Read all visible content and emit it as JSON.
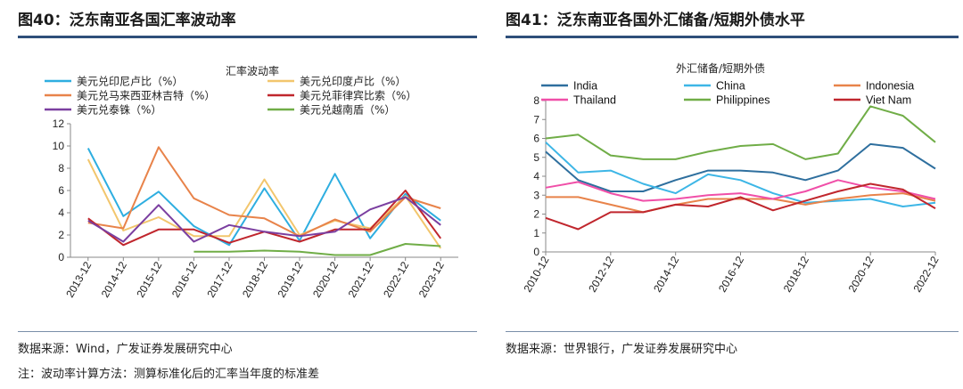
{
  "left": {
    "figure_title": "图40：泛东南亚各国汇率波动率",
    "source": "数据来源：Wind，广发证券发展研究中心",
    "note": "注：波动率计算方法：测算标准化后的汇率当年度的标准差"
  },
  "right": {
    "figure_title": "图41：泛东南亚各国外汇储备/短期外债水平",
    "source": "数据来源：世界银行，广发证券发展研究中心"
  },
  "chart_data": [
    {
      "type": "line",
      "title": "汇率波动率",
      "categories": [
        "2013-12",
        "2014-12",
        "2015-12",
        "2016-12",
        "2017-12",
        "2018-12",
        "2019-12",
        "2020-12",
        "2021-12",
        "2022-12",
        "2023-12"
      ],
      "ylim": [
        0,
        12
      ],
      "yticks": [
        0,
        2,
        4,
        6,
        8,
        10,
        12
      ],
      "grid": false,
      "legend_position": "top",
      "series": [
        {
          "name": "美元兑印尼卢比（%）",
          "color": "#2eaee0",
          "values": [
            9.8,
            3.7,
            5.9,
            2.8,
            1.1,
            6.2,
            1.5,
            7.5,
            1.7,
            5.7,
            3.3
          ]
        },
        {
          "name": "美元兑印度卢比（%）",
          "color": "#f2c66d",
          "values": [
            8.8,
            2.4,
            3.6,
            1.9,
            1.9,
            7.0,
            2.0,
            3.3,
            2.6,
            5.5,
            0.8
          ]
        },
        {
          "name": "美元兑马来西亚林吉特（%）",
          "color": "#e8834a",
          "values": [
            3.1,
            2.6,
            9.9,
            5.3,
            3.8,
            3.5,
            1.9,
            3.4,
            2.3,
            5.4,
            4.4
          ]
        },
        {
          "name": "美元兑菲律宾比索（%）",
          "color": "#c0262d",
          "values": [
            3.5,
            1.1,
            2.5,
            2.5,
            1.3,
            2.3,
            1.4,
            2.5,
            2.5,
            6.0,
            1.7
          ]
        },
        {
          "name": "美元兑泰铢（%）",
          "color": "#7b3fa0",
          "values": [
            3.3,
            1.4,
            4.7,
            1.4,
            2.9,
            2.3,
            1.9,
            2.3,
            4.3,
            5.4,
            2.9
          ]
        },
        {
          "name": "美元兑越南盾（%）",
          "color": "#70ad47",
          "values": [
            null,
            null,
            null,
            0.5,
            0.5,
            0.6,
            0.5,
            0.2,
            0.2,
            1.2,
            1.0
          ]
        }
      ]
    },
    {
      "type": "line",
      "title": "外汇储备/短期外债",
      "categories": [
        "2010-12",
        "2012-12",
        "2014-12",
        "2016-12",
        "2018-12",
        "2020-12",
        "2022-12"
      ],
      "x": [
        2010,
        2011,
        2012,
        2013,
        2014,
        2015,
        2016,
        2017,
        2018,
        2019,
        2020,
        2021,
        2022
      ],
      "ylim": [
        0,
        8
      ],
      "yticks": [
        0,
        1,
        2,
        3,
        4,
        5,
        6,
        7,
        8
      ],
      "grid": false,
      "legend_position": "top",
      "series": [
        {
          "name": "India",
          "color": "#2e6f9e",
          "values": [
            5.3,
            3.8,
            3.2,
            3.2,
            3.8,
            4.3,
            4.3,
            4.2,
            3.8,
            4.3,
            5.7,
            5.5,
            4.4
          ]
        },
        {
          "name": "China",
          "color": "#3db6e6",
          "values": [
            5.8,
            4.2,
            4.3,
            3.6,
            3.1,
            4.1,
            3.8,
            3.1,
            2.6,
            2.7,
            2.8,
            2.4,
            2.6
          ]
        },
        {
          "name": "Indonesia",
          "color": "#e8834a",
          "values": [
            2.9,
            2.9,
            2.5,
            2.1,
            2.5,
            2.8,
            2.8,
            2.8,
            2.5,
            2.8,
            3.0,
            3.1,
            2.7
          ]
        },
        {
          "name": "Thailand",
          "color": "#f04fa8",
          "values": [
            3.4,
            3.7,
            3.1,
            2.7,
            2.8,
            3.0,
            3.1,
            2.8,
            3.2,
            3.8,
            3.4,
            3.2,
            2.8
          ]
        },
        {
          "name": "Philippines",
          "color": "#70ad47",
          "values": [
            6.0,
            6.2,
            5.1,
            4.9,
            4.9,
            5.3,
            5.6,
            5.7,
            4.9,
            5.2,
            7.7,
            7.2,
            5.8
          ]
        },
        {
          "name": "Viet Nam",
          "color": "#c0262d",
          "values": [
            1.8,
            1.2,
            2.1,
            2.1,
            2.5,
            2.4,
            2.9,
            2.2,
            2.7,
            3.2,
            3.6,
            3.3,
            2.3
          ]
        }
      ]
    }
  ]
}
